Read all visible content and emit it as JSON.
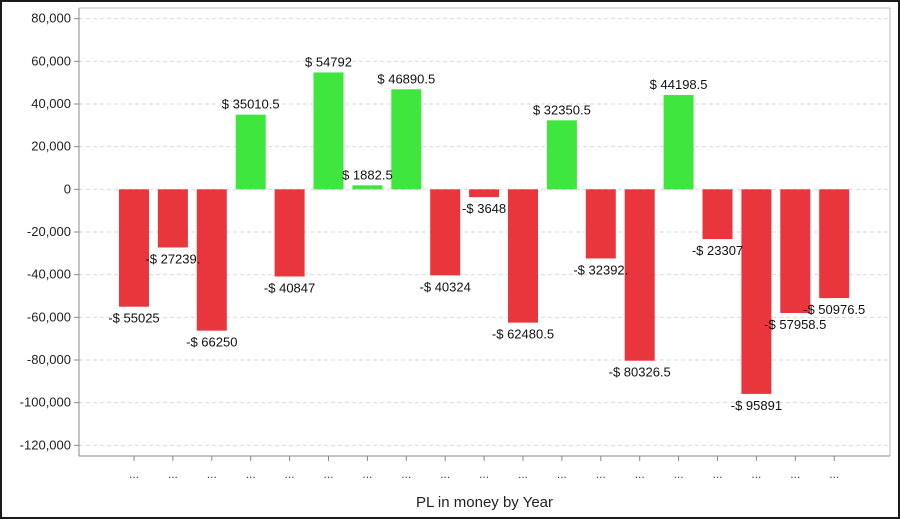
{
  "chart_data": {
    "type": "bar",
    "xlabel": "PL in money by Year",
    "ylabel": "",
    "ylim": [
      -125000,
      85000
    ],
    "yticks": [
      80000,
      60000,
      40000,
      20000,
      0,
      -20000,
      -40000,
      -60000,
      -80000,
      -100000,
      -120000
    ],
    "ytick_labels": [
      "80,000",
      "60,000",
      "40,000",
      "20,000",
      "0",
      "-20,000",
      "-40,000",
      "-60,000",
      "-80,000",
      "-100,000",
      "-120,000"
    ],
    "grid": true,
    "categories": [
      "...",
      "...",
      "...",
      "...",
      "...",
      "...",
      "...",
      "...",
      "...",
      "...",
      "...",
      "...",
      "...",
      "...",
      "...",
      "...",
      "...",
      "...",
      "..."
    ],
    "values": [
      -55025,
      -27239,
      -66250,
      35010.5,
      -40847,
      54792,
      1882.5,
      46890.5,
      -40324,
      -3648,
      -62480.5,
      32350.5,
      -32392,
      -80326.5,
      44198.5,
      -23307,
      -95891,
      -57958.5,
      -50976.5
    ],
    "data_labels": [
      "-$ 55025",
      "-$ 27239.",
      "-$ 66250",
      "$ 35010.5",
      "-$ 40847",
      "$ 54792",
      "$ 1882.5",
      "$ 46890.5",
      "-$ 40324",
      "-$ 3648",
      "-$ 62480.5",
      "$ 32350.5",
      "-$ 32392.",
      "-$ 80326.5",
      "$ 44198.5",
      "-$ 23307",
      "-$ 95891",
      "-$ 57958.5",
      "-$ 50976.5"
    ],
    "colors": {
      "positive": "#3ee63e",
      "negative": "#e8363c",
      "grid": "#d9d9d9",
      "axis": "#888888"
    }
  }
}
